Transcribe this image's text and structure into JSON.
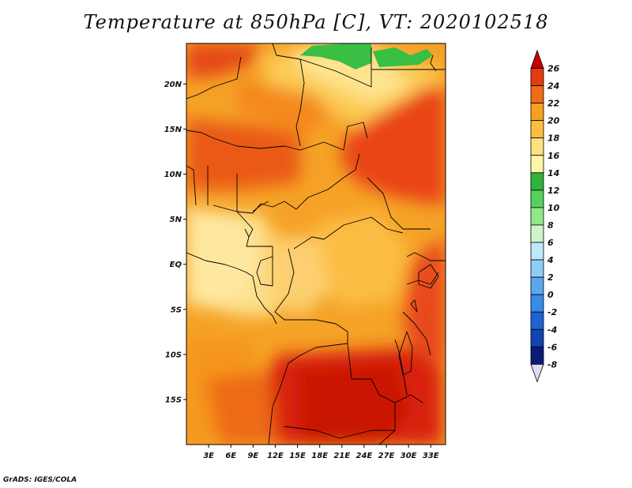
{
  "title": "Temperature at 850hPa [C], VT: 2020102518",
  "footer": "GrADS: IGES/COLA",
  "map": {
    "lon_range": [
      0,
      35
    ],
    "lat_range": [
      -20,
      24.5
    ],
    "lon_ticks": [
      "3E",
      "6E",
      "9E",
      "12E",
      "15E",
      "18E",
      "21E",
      "24E",
      "27E",
      "30E",
      "33E"
    ],
    "lat_ticks": [
      "20N",
      "15N",
      "10N",
      "5N",
      "EQ",
      "5S",
      "10S",
      "15S"
    ]
  },
  "colorbar": {
    "labels": [
      "26",
      "24",
      "22",
      "20",
      "18",
      "16",
      "14",
      "12",
      "10",
      "8",
      "6",
      "4",
      "2",
      "0",
      "-2",
      "-4",
      "-6",
      "-8"
    ],
    "colors": [
      "#c80000",
      "#e83a10",
      "#f06a18",
      "#f8a020",
      "#fcc040",
      "#fee080",
      "#fff4a8",
      "#2eb43a",
      "#58d05e",
      "#90e888",
      "#d0f4c8",
      "#bee8fa",
      "#8ccdf6",
      "#5aa8ee",
      "#3a8ae8",
      "#1f62d6",
      "#1044b0",
      "#0a1c7a",
      "#06105a",
      "#dcdcf4"
    ]
  }
}
